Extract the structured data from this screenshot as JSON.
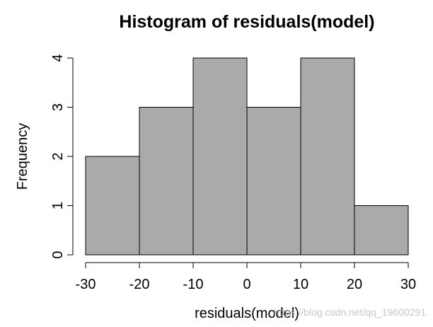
{
  "chart_data": {
    "type": "bar",
    "title": "Histogram of residuals(model)",
    "xlabel": "residuals(model)",
    "ylabel": "Frequency",
    "bins": [
      {
        "from": -30,
        "to": -20,
        "count": 2
      },
      {
        "from": -20,
        "to": -10,
        "count": 3
      },
      {
        "from": -10,
        "to": 0,
        "count": 4
      },
      {
        "from": 0,
        "to": 10,
        "count": 3
      },
      {
        "from": 10,
        "to": 20,
        "count": 4
      },
      {
        "from": 20,
        "to": 30,
        "count": 1
      }
    ],
    "xlim": [
      -30,
      30
    ],
    "ylim": [
      0,
      4
    ],
    "x_ticks": [
      -30,
      -20,
      -10,
      0,
      10,
      20,
      30
    ],
    "y_ticks": [
      0,
      1,
      2,
      3,
      4
    ],
    "bar_color": "#aaaaaa",
    "border_color": "#000000",
    "grid": false
  },
  "watermark": "https://blog.csdn.net/qq_19600291"
}
